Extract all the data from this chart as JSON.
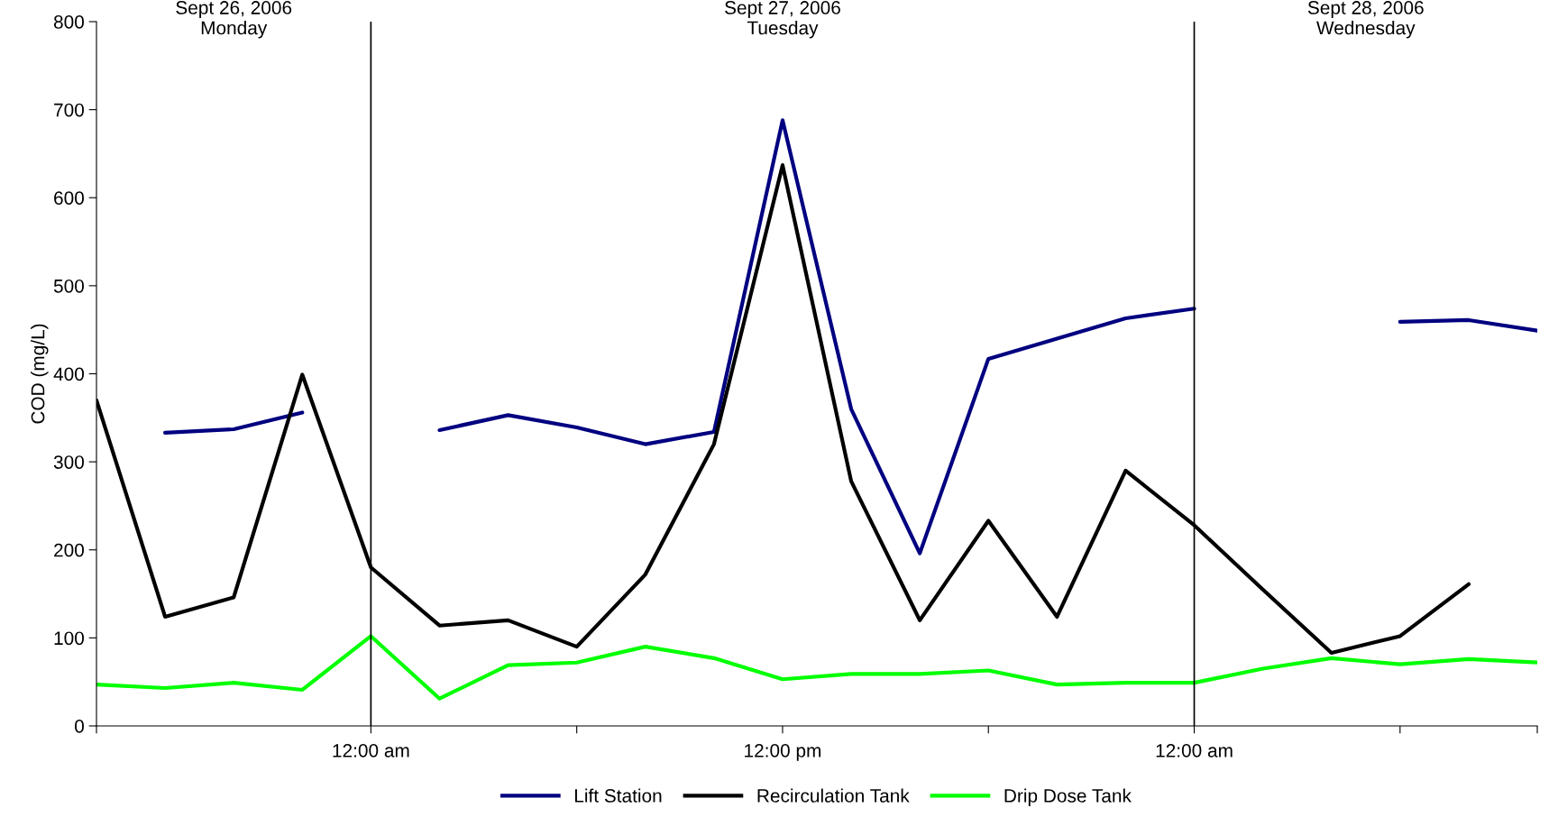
{
  "chart_data": {
    "type": "line",
    "ylabel": "COD (mg/L)",
    "x": [
      "2006-09-26T16:00",
      "2006-09-26T18:00",
      "2006-09-26T20:00",
      "2006-09-26T22:00",
      "2006-09-27T00:00",
      "2006-09-27T02:00",
      "2006-09-27T04:00",
      "2006-09-27T06:00",
      "2006-09-27T08:00",
      "2006-09-27T10:00",
      "2006-09-27T12:00",
      "2006-09-27T14:00",
      "2006-09-27T16:00",
      "2006-09-27T18:00",
      "2006-09-27T20:00",
      "2006-09-27T22:00",
      "2006-09-28T00:00",
      "2006-09-28T02:00",
      "2006-09-28T04:00",
      "2006-09-28T06:00",
      "2006-09-28T08:00",
      "2006-09-28T10:00"
    ],
    "series": [
      {
        "name": "Lift Station",
        "color": "#000080",
        "values": [
          null,
          333,
          337,
          356,
          null,
          336,
          353,
          339,
          320,
          334,
          688,
          360,
          196,
          417,
          440,
          463,
          474,
          null,
          null,
          459,
          461,
          449
        ]
      },
      {
        "name": "Recirculation Tank",
        "color": "#000000",
        "values": [
          370,
          124,
          146,
          399,
          180,
          114,
          120,
          90,
          172,
          320,
          637,
          278,
          120,
          233,
          124,
          290,
          228,
          155,
          83,
          102,
          161,
          null
        ]
      },
      {
        "name": "Drip Dose Tank",
        "color": "#00ff00",
        "values": [
          47,
          43,
          49,
          41,
          102,
          31,
          69,
          72,
          90,
          77,
          53,
          59,
          59,
          63,
          47,
          49,
          49,
          65,
          77,
          70,
          76,
          72
        ]
      }
    ],
    "xlim": [
      "2006-09-26T16:00",
      "2006-09-28T10:00"
    ],
    "xticks": [
      {
        "value": "2006-09-26T16:00",
        "label": null
      },
      {
        "value": "2006-09-27T00:00",
        "label": "12:00 am"
      },
      {
        "value": "2006-09-27T06:00",
        "label": null
      },
      {
        "value": "2006-09-27T12:00",
        "label": "12:00 pm"
      },
      {
        "value": "2006-09-27T18:00",
        "label": null
      },
      {
        "value": "2006-09-28T00:00",
        "label": "12:00 am"
      },
      {
        "value": "2006-09-28T06:00",
        "label": null
      },
      {
        "value": "2006-09-28T10:00",
        "label": null
      }
    ],
    "ylim": [
      0,
      800
    ],
    "yticks": [
      0,
      100,
      200,
      300,
      400,
      500,
      600,
      700,
      800
    ],
    "ref_lines": [
      {
        "axis": "x",
        "value": "2006-09-27T00:00",
        "label": null,
        "color": "#000000"
      },
      {
        "axis": "x",
        "value": "2006-09-28T00:00",
        "label": null,
        "color": "#000000"
      }
    ],
    "annotations": [
      "Sept 26, 2006\nMonday",
      "Sept 27, 2006\nTuesday",
      "Sept 28, 2006\nWednesday"
    ],
    "legend": "bottom",
    "marker": "none",
    "line_style": "solid"
  }
}
